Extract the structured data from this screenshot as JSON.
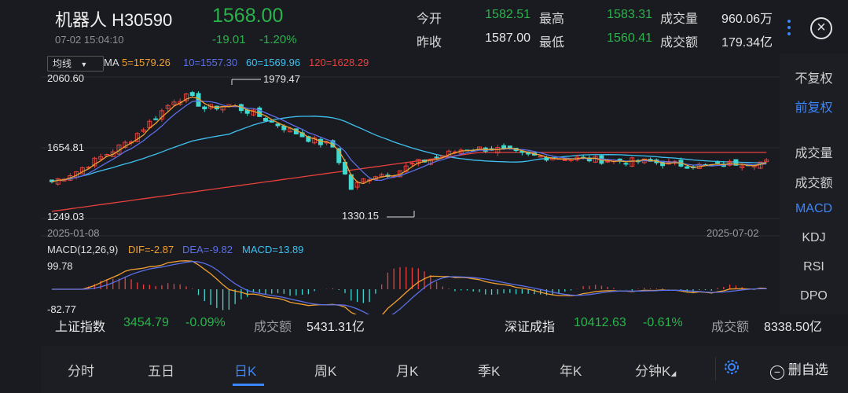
{
  "header": {
    "name": "机器人 H30590",
    "time": "07-02 15:04:10",
    "price": "1568.00",
    "change": "-19.01",
    "change_pct": "-1.20%",
    "quotes": [
      {
        "label": "今开",
        "value": "1582.51",
        "color": "down"
      },
      {
        "label": "最高",
        "value": "1583.31",
        "color": "down"
      },
      {
        "label": "成交量",
        "value": "960.06万",
        "color": "plain"
      },
      {
        "label": "昨收",
        "value": "1587.00",
        "color": "plain"
      },
      {
        "label": "最低",
        "value": "1560.41",
        "color": "down"
      },
      {
        "label": "成交额",
        "value": "179.34亿",
        "color": "plain"
      }
    ],
    "close_icon": "close-circle-icon",
    "more_icon": "more-vertical-icon"
  },
  "toolbar": {
    "mode": "均线",
    "ma_label": "MA",
    "ma5": "5=1579.26",
    "ma10": "10=1557.30",
    "ma60": "60=1569.96",
    "ma120": "120=1628.29"
  },
  "chart_labels": {
    "y_top": "2060.60",
    "y_mid": "1654.81",
    "y_bottom": "1249.03",
    "high_mark": "1979.47",
    "low_mark": "1330.15",
    "date_start": "2025-01-08",
    "date_end": "2025-07-02"
  },
  "macd": {
    "label": "MACD(12,26,9)",
    "dif": "DIF=-2.87",
    "dea": "DEA=-9.82",
    "macd": "MACD=13.89",
    "y_top": "99.78",
    "y_bottom": "-82.77"
  },
  "right_panel": [
    {
      "label": "不复权",
      "active": false
    },
    {
      "label": "前复权",
      "active": true
    },
    {
      "label": "成交量",
      "active": false
    },
    {
      "label": "成交额",
      "active": false
    },
    {
      "label": "MACD",
      "active": true
    },
    {
      "label": "KDJ",
      "active": false
    },
    {
      "label": "RSI",
      "active": false
    },
    {
      "label": "DPO",
      "active": false
    }
  ],
  "index_bar": {
    "sh_name": "上证指数",
    "sh_value": "3454.79",
    "sh_pct": "-0.09%",
    "sh_amt_label": "成交额",
    "sh_amt": "5431.31亿",
    "sz_name": "深证成指",
    "sz_value": "10412.63",
    "sz_pct": "-0.61%",
    "sz_amt_label": "成交额",
    "sz_amt": "8338.50亿"
  },
  "tabs": [
    {
      "label": "分时",
      "active": false
    },
    {
      "label": "五日",
      "active": false
    },
    {
      "label": "日K",
      "active": true
    },
    {
      "label": "周K",
      "active": false
    },
    {
      "label": "月K",
      "active": false
    },
    {
      "label": "季K",
      "active": false
    },
    {
      "label": "年K",
      "active": false
    },
    {
      "label": "分钟K",
      "active": false
    }
  ],
  "tab_actions": {
    "settings_icon": "gear-icon",
    "delete_label": "删自选",
    "delete_icon": "minus-circle-icon"
  },
  "colors": {
    "up": "#e8413c",
    "down": "#2bb34b",
    "ma5": "#f0a030",
    "ma10": "#5a6fe8",
    "ma60": "#3fc0f0",
    "ma120": "#e8413c",
    "accent": "#3a86ff"
  }
}
